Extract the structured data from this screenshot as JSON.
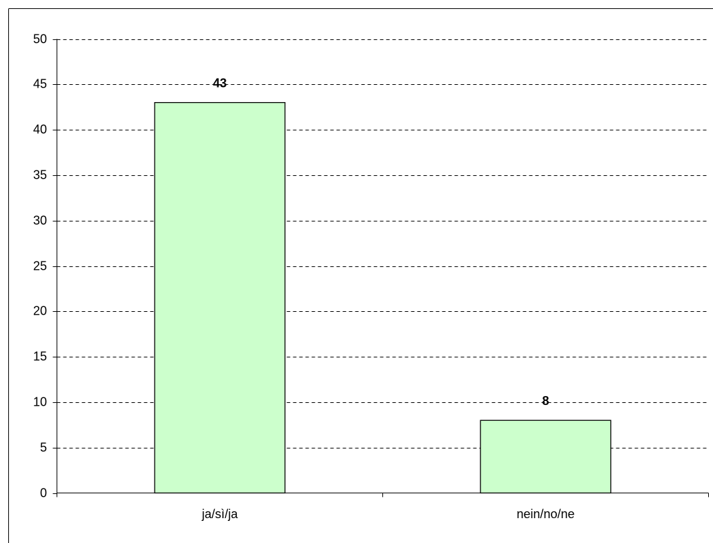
{
  "chart_data": {
    "type": "bar",
    "categories": [
      "ja/sì/ja",
      "nein/no/ne"
    ],
    "values": [
      43,
      8
    ],
    "color": "#ccffcc",
    "ylim": [
      0,
      50
    ],
    "yticks": [
      0,
      5,
      10,
      15,
      20,
      25,
      30,
      35,
      40,
      45,
      50
    ],
    "grid": true
  }
}
